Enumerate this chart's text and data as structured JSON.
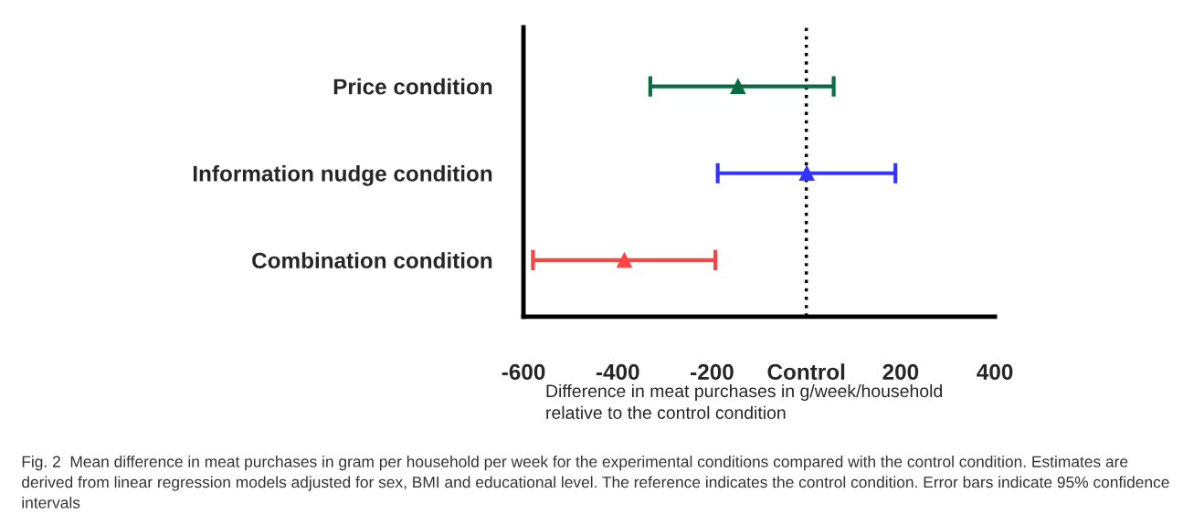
{
  "chart_data": {
    "type": "scatter",
    "orientation": "horizontal",
    "categories": [
      "Price condition",
      "Information nudge condition",
      "Combination condition"
    ],
    "values": [
      -145,
      1,
      -386
    ],
    "errors": [
      [
        -331,
        58
      ],
      [
        -188,
        189
      ],
      [
        -580,
        -193
      ]
    ],
    "colors": [
      "#0b6b45",
      "#3333ff",
      "#ff4444"
    ],
    "marker": "triangle",
    "xlim": [
      -600,
      400
    ],
    "xticks": [
      -600,
      -400,
      -200,
      {
        "value": 0,
        "label": "Control"
      },
      200,
      400
    ],
    "xlabel": "Difference in meat purchases in g/week/household\nrelative to the control condition",
    "ref_lines": [
      {
        "axis": "x",
        "value": 0,
        "label": null,
        "color": "#000000",
        "line_style": "dotted"
      }
    ],
    "grid": false,
    "annotations": [
      "Fig. 2  Mean difference in meat purchases in gram per household per week for the experimental conditions compared with the control condition. Estimates are derived from linear regression models adjusted for sex, BMI and educational level. The reference indicates the control condition. Error bars indicate 95% confidence intervals"
    ]
  }
}
